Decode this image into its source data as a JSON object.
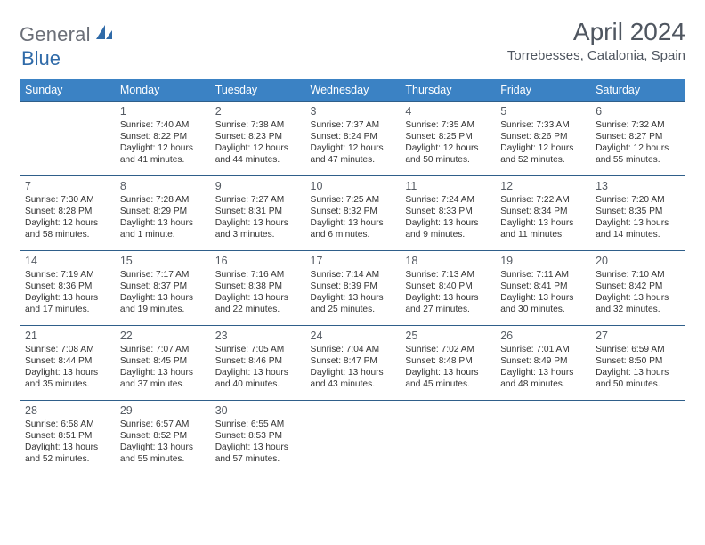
{
  "logo": {
    "text1": "General",
    "text2": "Blue",
    "brand_blue": "#2f6aa8",
    "brand_gray": "#6b6f78"
  },
  "header": {
    "title": "April 2024",
    "location": "Torrebesses, Catalonia, Spain"
  },
  "colors": {
    "header_bg": "#3b82c4",
    "header_fg": "#ffffff",
    "cell_border": "#2f5f8a",
    "text": "#333333",
    "title_color": "#4f5660"
  },
  "weekdays": [
    "Sunday",
    "Monday",
    "Tuesday",
    "Wednesday",
    "Thursday",
    "Friday",
    "Saturday"
  ],
  "grid": [
    [
      null,
      {
        "num": "1",
        "sunrise": "7:40 AM",
        "sunset": "8:22 PM",
        "daylight": "12 hours and 41 minutes."
      },
      {
        "num": "2",
        "sunrise": "7:38 AM",
        "sunset": "8:23 PM",
        "daylight": "12 hours and 44 minutes."
      },
      {
        "num": "3",
        "sunrise": "7:37 AM",
        "sunset": "8:24 PM",
        "daylight": "12 hours and 47 minutes."
      },
      {
        "num": "4",
        "sunrise": "7:35 AM",
        "sunset": "8:25 PM",
        "daylight": "12 hours and 50 minutes."
      },
      {
        "num": "5",
        "sunrise": "7:33 AM",
        "sunset": "8:26 PM",
        "daylight": "12 hours and 52 minutes."
      },
      {
        "num": "6",
        "sunrise": "7:32 AM",
        "sunset": "8:27 PM",
        "daylight": "12 hours and 55 minutes."
      }
    ],
    [
      {
        "num": "7",
        "sunrise": "7:30 AM",
        "sunset": "8:28 PM",
        "daylight": "12 hours and 58 minutes."
      },
      {
        "num": "8",
        "sunrise": "7:28 AM",
        "sunset": "8:29 PM",
        "daylight": "13 hours and 1 minute."
      },
      {
        "num": "9",
        "sunrise": "7:27 AM",
        "sunset": "8:31 PM",
        "daylight": "13 hours and 3 minutes."
      },
      {
        "num": "10",
        "sunrise": "7:25 AM",
        "sunset": "8:32 PM",
        "daylight": "13 hours and 6 minutes."
      },
      {
        "num": "11",
        "sunrise": "7:24 AM",
        "sunset": "8:33 PM",
        "daylight": "13 hours and 9 minutes."
      },
      {
        "num": "12",
        "sunrise": "7:22 AM",
        "sunset": "8:34 PM",
        "daylight": "13 hours and 11 minutes."
      },
      {
        "num": "13",
        "sunrise": "7:20 AM",
        "sunset": "8:35 PM",
        "daylight": "13 hours and 14 minutes."
      }
    ],
    [
      {
        "num": "14",
        "sunrise": "7:19 AM",
        "sunset": "8:36 PM",
        "daylight": "13 hours and 17 minutes."
      },
      {
        "num": "15",
        "sunrise": "7:17 AM",
        "sunset": "8:37 PM",
        "daylight": "13 hours and 19 minutes."
      },
      {
        "num": "16",
        "sunrise": "7:16 AM",
        "sunset": "8:38 PM",
        "daylight": "13 hours and 22 minutes."
      },
      {
        "num": "17",
        "sunrise": "7:14 AM",
        "sunset": "8:39 PM",
        "daylight": "13 hours and 25 minutes."
      },
      {
        "num": "18",
        "sunrise": "7:13 AM",
        "sunset": "8:40 PM",
        "daylight": "13 hours and 27 minutes."
      },
      {
        "num": "19",
        "sunrise": "7:11 AM",
        "sunset": "8:41 PM",
        "daylight": "13 hours and 30 minutes."
      },
      {
        "num": "20",
        "sunrise": "7:10 AM",
        "sunset": "8:42 PM",
        "daylight": "13 hours and 32 minutes."
      }
    ],
    [
      {
        "num": "21",
        "sunrise": "7:08 AM",
        "sunset": "8:44 PM",
        "daylight": "13 hours and 35 minutes."
      },
      {
        "num": "22",
        "sunrise": "7:07 AM",
        "sunset": "8:45 PM",
        "daylight": "13 hours and 37 minutes."
      },
      {
        "num": "23",
        "sunrise": "7:05 AM",
        "sunset": "8:46 PM",
        "daylight": "13 hours and 40 minutes."
      },
      {
        "num": "24",
        "sunrise": "7:04 AM",
        "sunset": "8:47 PM",
        "daylight": "13 hours and 43 minutes."
      },
      {
        "num": "25",
        "sunrise": "7:02 AM",
        "sunset": "8:48 PM",
        "daylight": "13 hours and 45 minutes."
      },
      {
        "num": "26",
        "sunrise": "7:01 AM",
        "sunset": "8:49 PM",
        "daylight": "13 hours and 48 minutes."
      },
      {
        "num": "27",
        "sunrise": "6:59 AM",
        "sunset": "8:50 PM",
        "daylight": "13 hours and 50 minutes."
      }
    ],
    [
      {
        "num": "28",
        "sunrise": "6:58 AM",
        "sunset": "8:51 PM",
        "daylight": "13 hours and 52 minutes."
      },
      {
        "num": "29",
        "sunrise": "6:57 AM",
        "sunset": "8:52 PM",
        "daylight": "13 hours and 55 minutes."
      },
      {
        "num": "30",
        "sunrise": "6:55 AM",
        "sunset": "8:53 PM",
        "daylight": "13 hours and 57 minutes."
      },
      null,
      null,
      null,
      null
    ]
  ]
}
